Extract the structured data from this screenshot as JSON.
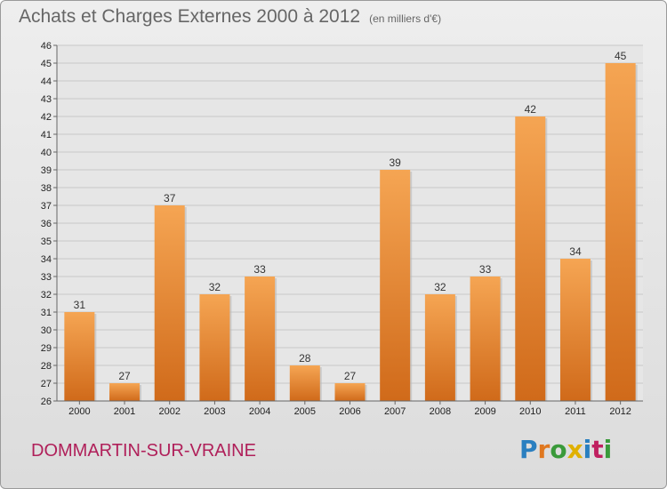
{
  "title": "Achats et Charges Externes 2000 à 2012",
  "unit_note": "(en milliers d'€)",
  "location": "DOMMARTIN-SUR-VRAINE",
  "logo": {
    "text": "Proxiti",
    "letters": [
      {
        "ch": "P",
        "color": "#2a7fc0"
      },
      {
        "ch": "r",
        "color": "#e07820"
      },
      {
        "ch": "o",
        "color": "#3a9a3a"
      },
      {
        "ch": "x",
        "color": "#e0b000"
      },
      {
        "ch": "i",
        "color": "#2a7fc0"
      },
      {
        "ch": "t",
        "color": "#c02060"
      },
      {
        "ch": "i",
        "color": "#3a9a3a"
      }
    ]
  },
  "colors": {
    "bar_light": "#f5a553",
    "bar_dark": "#d06a1a",
    "grid": "#c8c8c8",
    "axis": "#666666"
  },
  "chart_data": {
    "type": "bar",
    "title": "Achats et Charges Externes 2000 à 2012",
    "xlabel": "",
    "ylabel": "",
    "categories": [
      "2000",
      "2001",
      "2002",
      "2003",
      "2004",
      "2005",
      "2006",
      "2007",
      "2008",
      "2009",
      "2010",
      "2011",
      "2012"
    ],
    "values": [
      31,
      27,
      37,
      32,
      33,
      28,
      27,
      39,
      32,
      33,
      42,
      34,
      45
    ],
    "ylim": [
      26,
      46
    ],
    "yticks": [
      26,
      27,
      28,
      29,
      30,
      31,
      32,
      33,
      34,
      35,
      36,
      37,
      38,
      39,
      40,
      41,
      42,
      43,
      44,
      45,
      46
    ],
    "grid": true,
    "data_labels": true
  }
}
